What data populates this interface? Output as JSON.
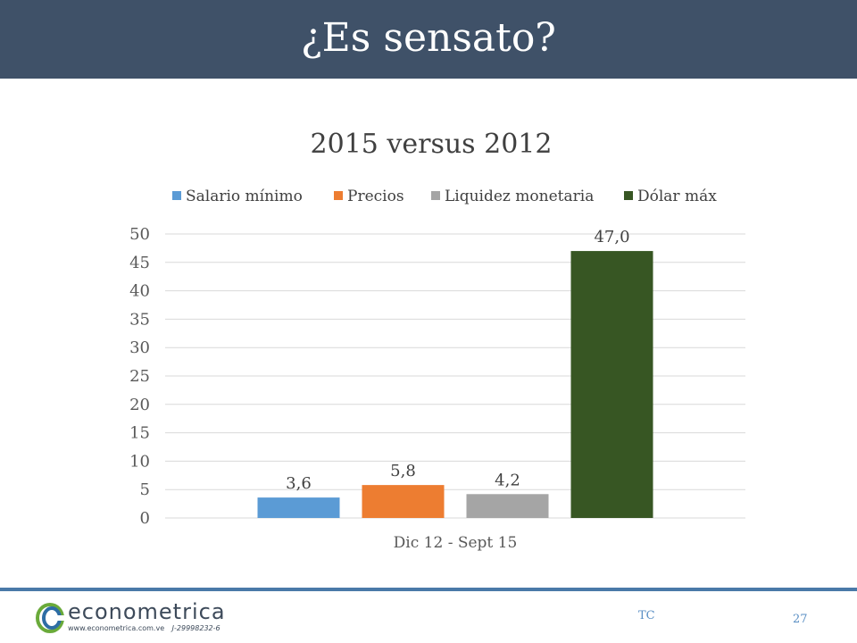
{
  "slide": {
    "title": "¿Es sensato?",
    "footer_tag": "TC",
    "page_number": "27"
  },
  "logo": {
    "brand": "econometrica",
    "url_text": "www.econometrica.com.ve",
    "rif_text": "J-29998232-6",
    "icon": "econometrica-swirl-icon",
    "colors": {
      "green": "#6aaa3a",
      "blue": "#2e6da4",
      "text": "#3d4a5a"
    }
  },
  "colors": {
    "banner": "#3f5168",
    "footer_rule": "#4a79a8",
    "footer_text": "#5a8fc4"
  },
  "chart_data": {
    "type": "bar",
    "title": "2015 versus 2012",
    "categories": [
      "Dic 12 - Sept 15"
    ],
    "series": [
      {
        "name": "Salario mínimo",
        "values": [
          3.6
        ],
        "label": "3,6",
        "color": "#5b9bd5"
      },
      {
        "name": "Precios",
        "values": [
          5.8
        ],
        "label": "5,8",
        "color": "#ed7d31"
      },
      {
        "name": "Liquidez monetaria",
        "values": [
          4.2
        ],
        "label": "4,2",
        "color": "#a5a5a5"
      },
      {
        "name": "Dólar máx",
        "values": [
          47.0
        ],
        "label": "47,0",
        "color": "#375623"
      }
    ],
    "y_ticks": [
      "0",
      "5",
      "10",
      "15",
      "20",
      "25",
      "30",
      "35",
      "40",
      "45",
      "50"
    ],
    "ylim": [
      0,
      50
    ],
    "xlabel": "",
    "ylabel": "",
    "grid": true,
    "legend_position": "top"
  }
}
